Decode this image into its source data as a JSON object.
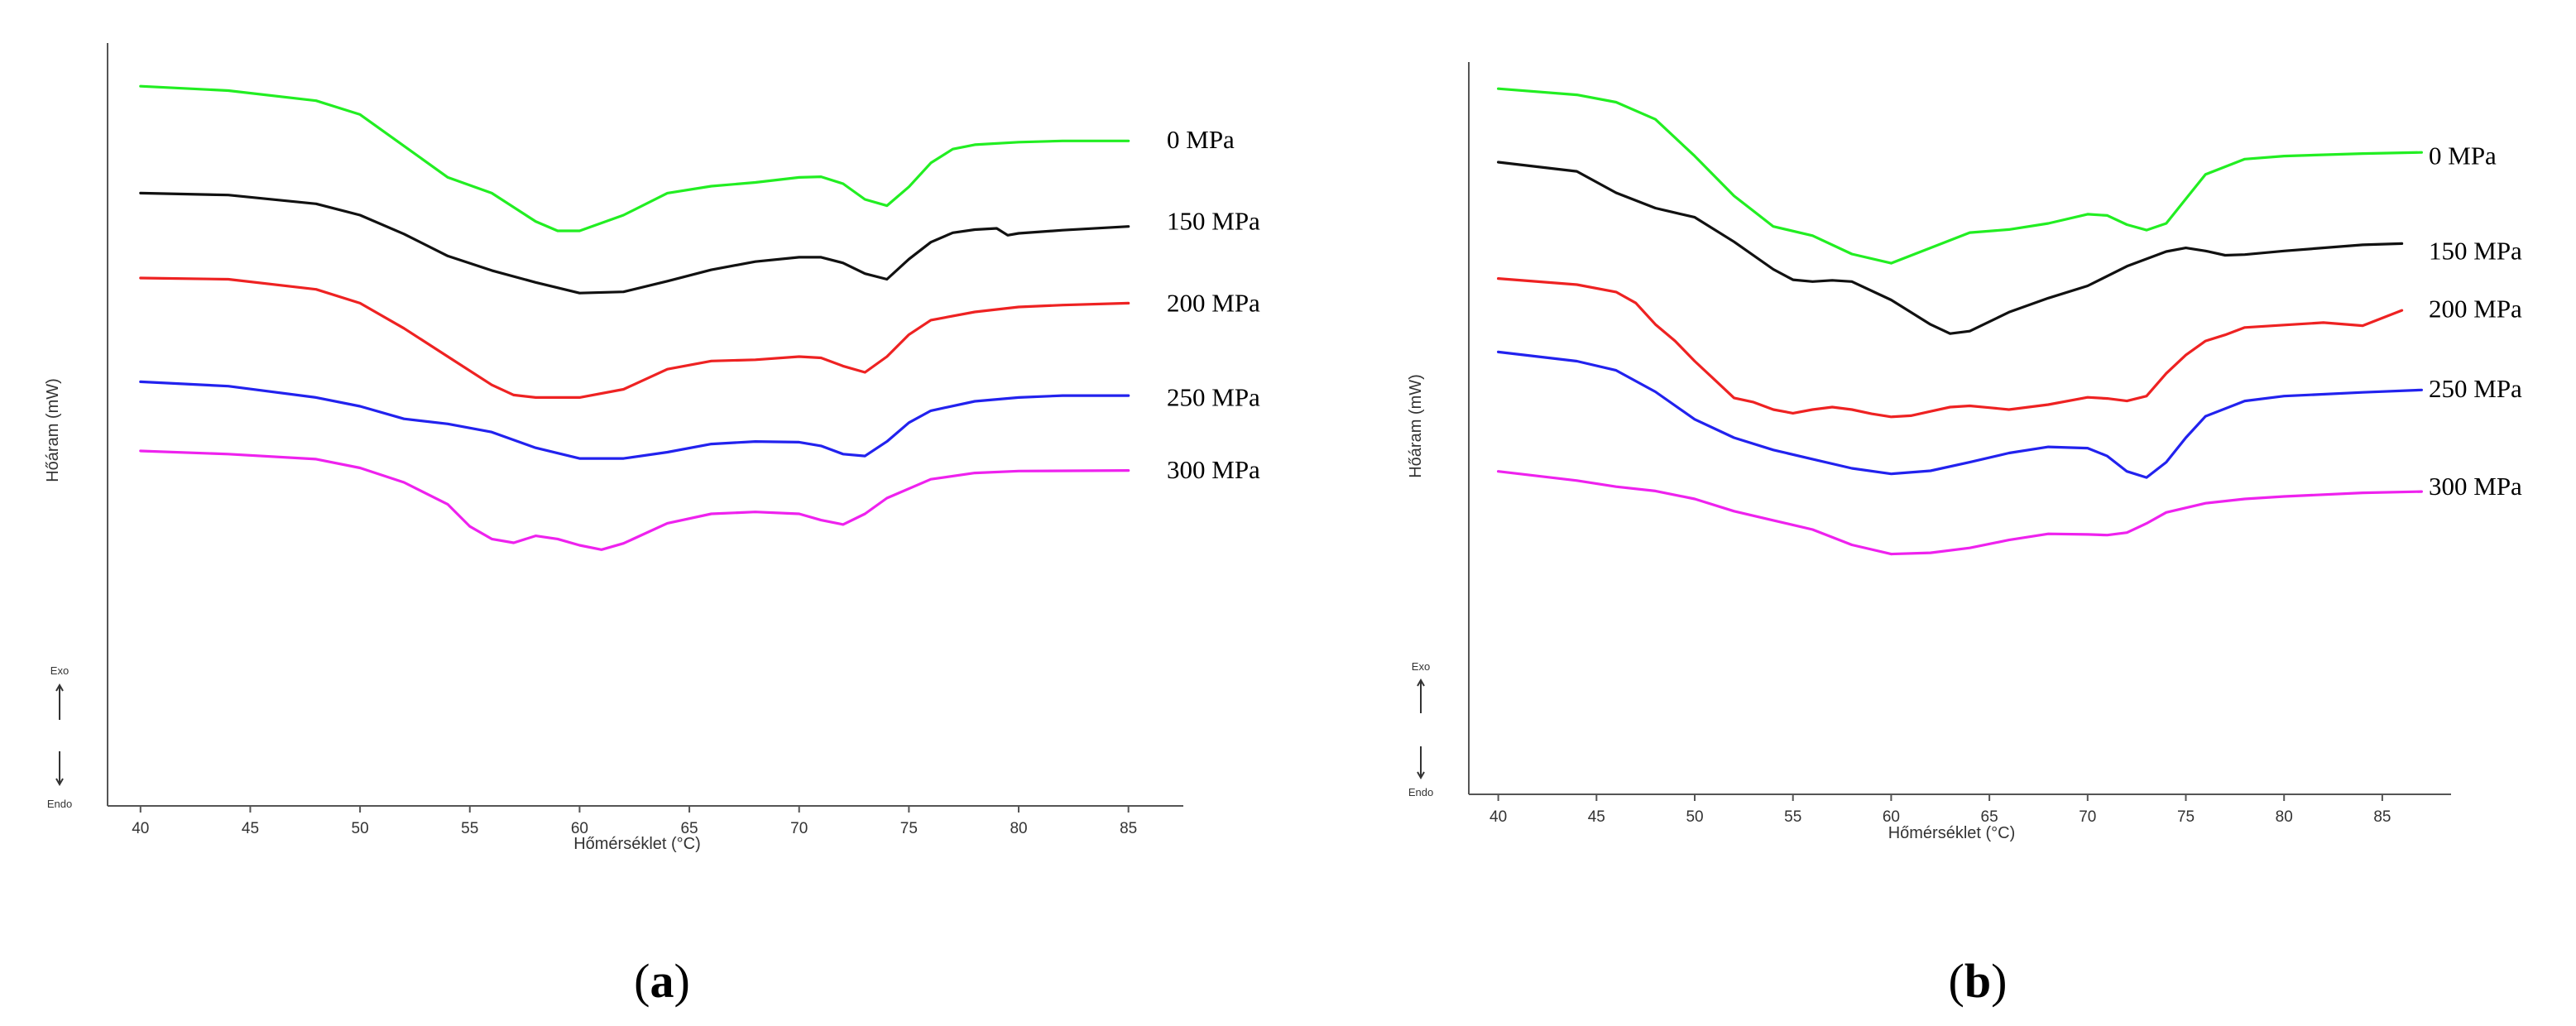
{
  "chart_data": [
    {
      "type": "line",
      "panel": "a",
      "panel_label": [
        "(",
        "a",
        ")"
      ],
      "xlabel": "Hőmérséklet (°C)",
      "ylabel": "Hőáram (mW)",
      "exo_label": "Exo",
      "endo_label": "Endo",
      "xlim": [
        38.5,
        87.5
      ],
      "ylim": [
        0,
        100
      ],
      "xticks": [
        40,
        45,
        50,
        55,
        60,
        65,
        70,
        75,
        80,
        85
      ],
      "series": [
        {
          "name": "0 MPa",
          "color": "#22ee22",
          "label_level": 87.0,
          "x": [
            40,
            44,
            48,
            50,
            52,
            54,
            56,
            58,
            59,
            60,
            62,
            64,
            66,
            68,
            70,
            71,
            72,
            73,
            74,
            75,
            76,
            77,
            78,
            80,
            82,
            85
          ],
          "y": [
            95.5,
            94.8,
            93.2,
            91.0,
            86.0,
            81.0,
            78.5,
            74.0,
            72.5,
            72.5,
            75.0,
            78.5,
            79.6,
            80.2,
            81.0,
            81.1,
            80.0,
            77.5,
            76.5,
            79.5,
            83.3,
            85.5,
            86.2,
            86.6,
            86.8,
            86.8
          ]
        },
        {
          "name": "150 MPa",
          "color": "#111111",
          "label_level": 74.0,
          "x": [
            40,
            44,
            48,
            50,
            52,
            54,
            56,
            58,
            60,
            62,
            64,
            66,
            68,
            70,
            71,
            72,
            73,
            74,
            75,
            76,
            77,
            78,
            79,
            79.5,
            80,
            82,
            85
          ],
          "y": [
            78.5,
            78.2,
            76.8,
            75.0,
            72.0,
            68.5,
            66.2,
            64.3,
            62.6,
            62.8,
            64.5,
            66.3,
            67.6,
            68.3,
            68.3,
            67.4,
            65.7,
            64.8,
            68.0,
            70.7,
            72.2,
            72.7,
            72.9,
            71.8,
            72.1,
            72.6,
            73.2
          ]
        },
        {
          "name": "200 MPa",
          "color": "#ee2222",
          "label_level": 61.0,
          "x": [
            40,
            44,
            48,
            50,
            52,
            54,
            56,
            57,
            58,
            60,
            62,
            64,
            66,
            68,
            70,
            71,
            72,
            73,
            74,
            75,
            76,
            78,
            80,
            82,
            85
          ],
          "y": [
            65.0,
            64.8,
            63.2,
            61.0,
            57.0,
            52.5,
            48.0,
            46.4,
            46.0,
            46.0,
            47.3,
            50.5,
            51.8,
            52.0,
            52.5,
            52.3,
            51.0,
            50.0,
            52.5,
            56.0,
            58.3,
            59.6,
            60.4,
            60.7,
            61.0
          ]
        },
        {
          "name": "250 MPa",
          "color": "#2222ee",
          "label_level": 46.0,
          "x": [
            40,
            44,
            48,
            50,
            52,
            54,
            56,
            58,
            60,
            62,
            64,
            66,
            68,
            70,
            71,
            72,
            73,
            74,
            75,
            76,
            78,
            80,
            82,
            85
          ],
          "y": [
            48.5,
            47.8,
            46.0,
            44.6,
            42.6,
            41.8,
            40.5,
            38.0,
            36.3,
            36.3,
            37.3,
            38.6,
            39.0,
            38.9,
            38.3,
            37.0,
            36.7,
            39.0,
            42.0,
            43.9,
            45.4,
            46.0,
            46.3,
            46.3
          ]
        },
        {
          "name": "300 MPa",
          "color": "#ee22ee",
          "label_level": 34.5,
          "x": [
            40,
            44,
            48,
            50,
            52,
            54,
            55,
            56,
            57,
            58,
            59,
            60,
            61,
            62,
            64,
            66,
            68,
            70,
            71,
            72,
            73,
            74,
            76,
            78,
            80,
            85
          ],
          "y": [
            37.5,
            37.0,
            36.2,
            34.8,
            32.5,
            29.0,
            25.5,
            23.5,
            22.9,
            24.0,
            23.5,
            22.5,
            21.8,
            22.8,
            26.0,
            27.5,
            27.8,
            27.5,
            26.5,
            25.8,
            27.5,
            30.0,
            33.0,
            34.0,
            34.3,
            34.4
          ]
        }
      ]
    },
    {
      "type": "line",
      "panel": "b",
      "panel_label": [
        "(",
        "b",
        ")"
      ],
      "xlabel": "Hőmérséklet (°C)",
      "ylabel": "Hőáram (mW)",
      "exo_label": "Exo",
      "endo_label": "Endo",
      "xlim": [
        38.5,
        88.5
      ],
      "ylim": [
        0,
        100
      ],
      "xticks": [
        40,
        45,
        50,
        55,
        60,
        65,
        70,
        75,
        80,
        85
      ],
      "series": [
        {
          "name": "0 MPa",
          "color": "#22ee22",
          "label_level": 86.0,
          "x": [
            40,
            44,
            46,
            48,
            50,
            52,
            54,
            56,
            58,
            60,
            62,
            64,
            66,
            68,
            70,
            71,
            72,
            73,
            74,
            75,
            76,
            78,
            80,
            84,
            87
          ],
          "y": [
            97.0,
            96.0,
            94.8,
            92.0,
            86.0,
            79.5,
            74.5,
            73.0,
            70.0,
            68.5,
            71.0,
            73.5,
            74.0,
            75.0,
            76.5,
            76.3,
            74.8,
            73.9,
            75.0,
            79.0,
            83.0,
            85.5,
            86.0,
            86.4,
            86.6
          ]
        },
        {
          "name": "150 MPa",
          "color": "#111111",
          "label_level": 70.5,
          "x": [
            40,
            44,
            46,
            48,
            50,
            52,
            54,
            55,
            56,
            57,
            58,
            60,
            62,
            63,
            64,
            66,
            68,
            70,
            72,
            74,
            75,
            76,
            77,
            78,
            80,
            84,
            86
          ],
          "y": [
            85.0,
            83.5,
            80.0,
            77.5,
            76.0,
            72.0,
            67.5,
            65.8,
            65.5,
            65.7,
            65.5,
            62.5,
            58.5,
            57.0,
            57.4,
            60.5,
            62.8,
            64.8,
            68.0,
            70.4,
            71.0,
            70.5,
            69.8,
            69.9,
            70.5,
            71.5,
            71.7
          ]
        },
        {
          "name": "200 MPa",
          "color": "#ee2222",
          "label_level": 61.0,
          "x": [
            40,
            44,
            46,
            47,
            48,
            49,
            50,
            51,
            52,
            53,
            54,
            55,
            56,
            57,
            58,
            59,
            60,
            61,
            62,
            63,
            64,
            65,
            66,
            68,
            70,
            71,
            72,
            73,
            74,
            75,
            76,
            77,
            78,
            80,
            82,
            84,
            86
          ],
          "y": [
            66.0,
            65.0,
            63.8,
            62.0,
            58.5,
            55.8,
            52.5,
            49.5,
            46.5,
            45.8,
            44.6,
            44.0,
            44.6,
            45.0,
            44.6,
            43.9,
            43.4,
            43.6,
            44.3,
            45.0,
            45.2,
            44.9,
            44.6,
            45.4,
            46.6,
            46.4,
            46.0,
            46.8,
            50.5,
            53.5,
            55.8,
            56.8,
            58.0,
            58.4,
            58.8,
            58.3,
            60.8
          ]
        },
        {
          "name": "250 MPa",
          "color": "#2222ee",
          "label_level": 48.0,
          "x": [
            40,
            44,
            46,
            48,
            50,
            52,
            54,
            56,
            58,
            60,
            62,
            64,
            66,
            68,
            70,
            71,
            72,
            73,
            74,
            75,
            76,
            78,
            80,
            84,
            87
          ],
          "y": [
            54.0,
            52.5,
            51.0,
            47.5,
            43.0,
            40.0,
            38.0,
            36.5,
            35.0,
            34.1,
            34.6,
            36.0,
            37.5,
            38.5,
            38.3,
            37.0,
            34.5,
            33.5,
            36.0,
            40.0,
            43.5,
            46.0,
            46.8,
            47.4,
            47.8
          ]
        },
        {
          "name": "300 MPa",
          "color": "#ee22ee",
          "label_level": 32.0,
          "x": [
            40,
            44,
            46,
            48,
            50,
            52,
            54,
            56,
            58,
            60,
            62,
            64,
            66,
            68,
            70,
            71,
            72,
            73,
            74,
            76,
            78,
            80,
            84,
            87
          ],
          "y": [
            34.5,
            33.0,
            32.0,
            31.3,
            30.0,
            28.0,
            26.5,
            25.0,
            22.5,
            21.0,
            21.2,
            22.0,
            23.3,
            24.3,
            24.2,
            24.1,
            24.5,
            26.0,
            27.8,
            29.3,
            30.0,
            30.4,
            31.0,
            31.2
          ]
        }
      ]
    }
  ]
}
